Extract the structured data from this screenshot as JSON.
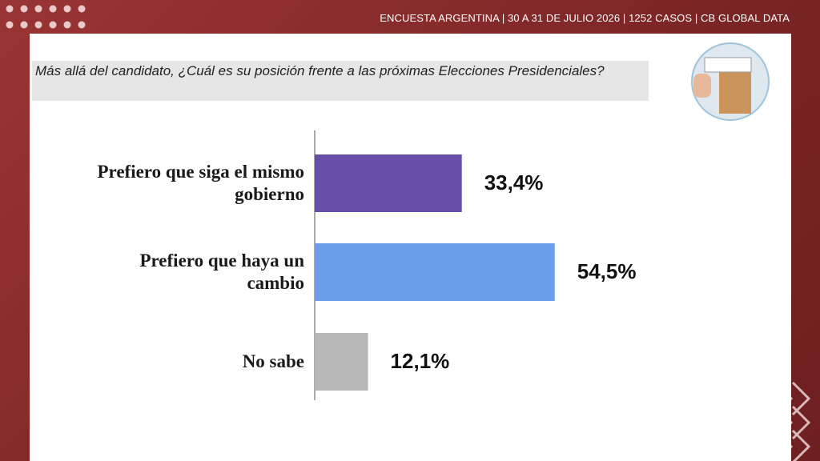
{
  "header": "ENCUESTA ARGENTINA | 30 A 31 DE JULIO 2026 | 1252 CASOS | CB GLOBAL DATA",
  "chart_data": {
    "type": "bar",
    "orientation": "horizontal",
    "title": "Más allá del candidato, ¿Cuál es su posición frente a las próximas Elecciones Presidenciales?",
    "categories": [
      "Prefiero que siga el mismo gobierno",
      "Prefiero que haya un cambio",
      "No sabe"
    ],
    "values": [
      33.4,
      54.5,
      12.1
    ],
    "value_labels": [
      "33,4%",
      "54,5%",
      "12,1%"
    ],
    "colors": [
      "#674ea7",
      "#6d9eeb",
      "#b7b7b7"
    ]
  }
}
